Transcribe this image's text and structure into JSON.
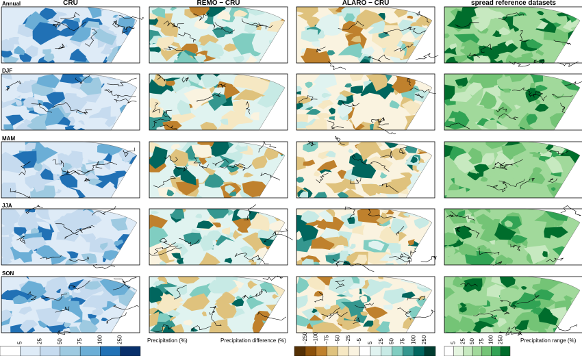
{
  "columns": [
    "CRU",
    "REMO − CRU",
    "ALARO − CRU",
    "spread reference datasets"
  ],
  "rows": [
    "Annual",
    "DJF",
    "MAM",
    "JJA",
    "SON"
  ],
  "colorbars": [
    {
      "label": "Precipitation (%)",
      "ticks": [
        "5",
        "25",
        "50",
        "75",
        "100",
        "250"
      ],
      "colors": [
        "#ffffff",
        "#deebf7",
        "#c6dbef",
        "#9ecae1",
        "#6baed6",
        "#2171b5",
        "#08306b"
      ]
    },
    {
      "label": "Precipitation difference (%)",
      "ticks": [
        "−250",
        "−100",
        "−75",
        "−50",
        "−25",
        "−5",
        "5",
        "25",
        "50",
        "75",
        "100",
        "250"
      ],
      "colors": [
        "#543005",
        "#8c510a",
        "#bf812d",
        "#dfc27d",
        "#f6e8c3",
        "#faf3e0",
        "#ffffff",
        "#e0f3f0",
        "#c7eae5",
        "#80cdc1",
        "#35978f",
        "#01665e",
        "#003c30"
      ]
    },
    {
      "label": "Precipitation range (%)",
      "ticks": [
        "5",
        "25",
        "50",
        "75",
        "100",
        "250"
      ],
      "colors": [
        "#ffffff",
        "#e5f5e0",
        "#c7e9c0",
        "#a1d99b",
        "#74c476",
        "#31a354",
        "#006d2c"
      ]
    }
  ]
}
